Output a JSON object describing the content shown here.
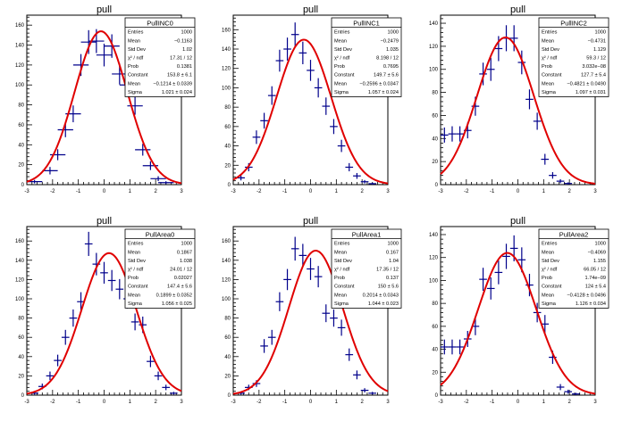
{
  "colors": {
    "data": "#00008b",
    "fit": "#e00000",
    "axis": "#000000",
    "box": "#000000"
  },
  "chart_data": [
    {
      "type": "scatter",
      "title": "pull",
      "stats_name": "PullINC0",
      "stats": [
        [
          "Entries",
          "1000"
        ],
        [
          "Mean",
          "−0.1163"
        ],
        [
          "Std Dev",
          "1.02"
        ],
        [
          "χ² / ndf",
          "17.31 / 12"
        ],
        [
          "Prob",
          "0.1381"
        ],
        [
          "Constant",
          "153.8 ± 6.1"
        ],
        [
          "Mean",
          "−0.1214 ± 0.0339"
        ],
        [
          "Sigma",
          "1.021 ± 0.024"
        ]
      ],
      "x_ticks": [
        "-3",
        "-2",
        "-1",
        "0",
        "1",
        "2",
        "3"
      ],
      "y_ticks": [
        "0",
        "20",
        "40",
        "60",
        "80",
        "100",
        "120",
        "140",
        "160"
      ],
      "xlim": [
        -3,
        3
      ],
      "ylim": [
        0,
        170
      ],
      "fit": {
        "constant": 153.8,
        "mean": -0.1214,
        "sigma": 1.021
      },
      "x": [
        -2.7,
        -2.1,
        -1.8,
        -1.5,
        -1.2,
        -0.9,
        -0.6,
        -0.3,
        0.0,
        0.3,
        0.6,
        0.9,
        1.2,
        1.5,
        1.8,
        2.1,
        2.4,
        2.7
      ],
      "values": [
        3,
        14,
        30,
        55,
        71,
        120,
        143,
        144,
        130,
        139,
        111,
        100,
        79,
        35,
        19,
        6,
        2,
        0
      ]
    },
    {
      "type": "scatter",
      "title": "pull",
      "stats_name": "PullINC1",
      "stats": [
        [
          "Entries",
          "1000"
        ],
        [
          "Mean",
          "−0.2479"
        ],
        [
          "Std Dev",
          "1.035"
        ],
        [
          "χ² / ndf",
          "8.198 / 12"
        ],
        [
          "Prob",
          "0.7695"
        ],
        [
          "Constant",
          "149.7 ± 5.6"
        ],
        [
          "Mean",
          "−0.2596 ± 0.0347"
        ],
        [
          "Sigma",
          "1.057 ± 0.024"
        ]
      ],
      "x_ticks": [
        "-3",
        "-2",
        "-1",
        "0",
        "1",
        "2",
        "3"
      ],
      "y_ticks": [
        "0",
        "20",
        "40",
        "60",
        "80",
        "100",
        "120",
        "140",
        "160"
      ],
      "xlim": [
        -3,
        3
      ],
      "ylim": [
        0,
        175
      ],
      "fit": {
        "constant": 149.7,
        "mean": -0.2596,
        "sigma": 1.057
      },
      "x": [
        -2.7,
        -2.4,
        -2.1,
        -1.8,
        -1.5,
        -1.2,
        -0.9,
        -0.6,
        -0.3,
        0.0,
        0.3,
        0.6,
        0.9,
        1.2,
        1.5,
        1.8,
        2.1,
        2.4,
        2.7
      ],
      "values": [
        7,
        18,
        49,
        66,
        92,
        128,
        140,
        155,
        136,
        118,
        100,
        81,
        60,
        40,
        18,
        9,
        3,
        1,
        0
      ]
    },
    {
      "type": "scatter",
      "title": "pull",
      "stats_name": "PullINC2",
      "stats": [
        [
          "Entries",
          "1000"
        ],
        [
          "Mean",
          "−0.4731"
        ],
        [
          "Std Dev",
          "1.129"
        ],
        [
          "χ² / ndf",
          "59.3 / 12"
        ],
        [
          "Prob",
          "3.032e−08"
        ],
        [
          "Constant",
          "127.7 ± 5.4"
        ],
        [
          "Mean",
          "−0.4821 ± 0.0490"
        ],
        [
          "Sigma",
          "1.097 ± 0.031"
        ]
      ],
      "x_ticks": [
        "-3",
        "-2",
        "-1",
        "0",
        "1",
        "2",
        "3"
      ],
      "y_ticks": [
        "0",
        "20",
        "40",
        "60",
        "80",
        "100",
        "120",
        "140"
      ],
      "xlim": [
        -3,
        3
      ],
      "ylim": [
        0,
        147
      ],
      "fit": {
        "constant": 127.7,
        "mean": -0.4821,
        "sigma": 1.097
      },
      "x": [
        -2.85,
        -2.55,
        -2.25,
        -1.95,
        -1.65,
        -1.35,
        -1.05,
        -0.75,
        -0.45,
        -0.15,
        0.15,
        0.45,
        0.75,
        1.05,
        1.35,
        1.65,
        1.95,
        2.25
      ],
      "values": [
        43,
        44,
        44,
        47,
        68,
        96,
        100,
        118,
        127,
        127,
        106,
        74,
        55,
        22,
        8,
        3,
        1,
        0
      ]
    },
    {
      "type": "scatter",
      "title": "pull",
      "stats_name": "PullArea0",
      "stats": [
        [
          "Entries",
          "1000"
        ],
        [
          "Mean",
          "0.1867"
        ],
        [
          "Std Dev",
          "1.038"
        ],
        [
          "χ² / ndf",
          "24.01 / 12"
        ],
        [
          "Prob",
          "0.02027"
        ],
        [
          "Constant",
          "147.4 ± 5.6"
        ],
        [
          "Mean",
          "0.1899 ± 0.0352"
        ],
        [
          "Sigma",
          "1.056 ± 0.025"
        ]
      ],
      "x_ticks": [
        "-3",
        "-2",
        "-1",
        "0",
        "1",
        "2",
        "3"
      ],
      "y_ticks": [
        "0",
        "20",
        "40",
        "60",
        "80",
        "100",
        "120",
        "140",
        "160"
      ],
      "xlim": [
        -3,
        3
      ],
      "ylim": [
        0,
        175
      ],
      "fit": {
        "constant": 147.4,
        "mean": 0.1899,
        "sigma": 1.056
      },
      "x": [
        -2.7,
        -2.4,
        -2.1,
        -1.8,
        -1.5,
        -1.2,
        -0.9,
        -0.6,
        -0.3,
        0.0,
        0.3,
        0.6,
        0.9,
        1.2,
        1.5,
        1.8,
        2.1,
        2.4,
        2.7
      ],
      "values": [
        2,
        9,
        20,
        36,
        60,
        80,
        97,
        157,
        136,
        127,
        119,
        110,
        100,
        76,
        73,
        35,
        20,
        8,
        2
      ]
    },
    {
      "type": "scatter",
      "title": "pull",
      "stats_name": "PullArea1",
      "stats": [
        [
          "Entries",
          "1000"
        ],
        [
          "Mean",
          "0.167"
        ],
        [
          "Std Dev",
          "1.04"
        ],
        [
          "χ² / ndf",
          "17.35 / 12"
        ],
        [
          "Prob",
          "0.137"
        ],
        [
          "Constant",
          "150 ± 5.6"
        ],
        [
          "Mean",
          "0.2014 ± 0.0343"
        ],
        [
          "Sigma",
          "1.044 ± 0.023"
        ]
      ],
      "x_ticks": [
        "-3",
        "-2",
        "-1",
        "0",
        "1",
        "2",
        "3"
      ],
      "y_ticks": [
        "0",
        "20",
        "40",
        "60",
        "80",
        "100",
        "120",
        "140",
        "160"
      ],
      "xlim": [
        -3,
        3
      ],
      "ylim": [
        0,
        175
      ],
      "fit": {
        "constant": 150,
        "mean": 0.2014,
        "sigma": 1.044
      },
      "x": [
        -2.7,
        -2.4,
        -2.1,
        -1.8,
        -1.5,
        -1.2,
        -0.9,
        -0.6,
        -0.3,
        0.0,
        0.3,
        0.6,
        0.9,
        1.2,
        1.5,
        1.8,
        2.1,
        2.4,
        2.7
      ],
      "values": [
        2,
        8,
        12,
        51,
        60,
        97,
        120,
        152,
        145,
        131,
        123,
        85,
        80,
        70,
        42,
        21,
        5,
        2,
        0
      ]
    },
    {
      "type": "scatter",
      "title": "pull",
      "stats_name": "PullArea2",
      "stats": [
        [
          "Entries",
          "1000"
        ],
        [
          "Mean",
          "−0.4069"
        ],
        [
          "Std Dev",
          "1.155"
        ],
        [
          "χ² / ndf",
          "66.05 / 12"
        ],
        [
          "Prob",
          "1.74e−09"
        ],
        [
          "Constant",
          "124 ± 5.4"
        ],
        [
          "Mean",
          "−0.4128 ± 0.0496"
        ],
        [
          "Sigma",
          "1.126 ± 0.034"
        ]
      ],
      "x_ticks": [
        "-3",
        "-2",
        "-1",
        "0",
        "1",
        "2",
        "3"
      ],
      "y_ticks": [
        "0",
        "20",
        "40",
        "60",
        "80",
        "100",
        "120",
        "140"
      ],
      "xlim": [
        -3,
        3
      ],
      "ylim": [
        0,
        147
      ],
      "fit": {
        "constant": 124,
        "mean": -0.4128,
        "sigma": 1.126
      },
      "x": [
        -2.85,
        -2.55,
        -2.25,
        -1.95,
        -1.65,
        -1.35,
        -1.05,
        -0.75,
        -0.45,
        -0.15,
        0.15,
        0.45,
        0.75,
        1.05,
        1.35,
        1.65,
        1.95,
        2.25
      ],
      "values": [
        42,
        42,
        42,
        49,
        60,
        101,
        93,
        107,
        121,
        128,
        118,
        96,
        72,
        62,
        33,
        7,
        3,
        1
      ]
    }
  ]
}
